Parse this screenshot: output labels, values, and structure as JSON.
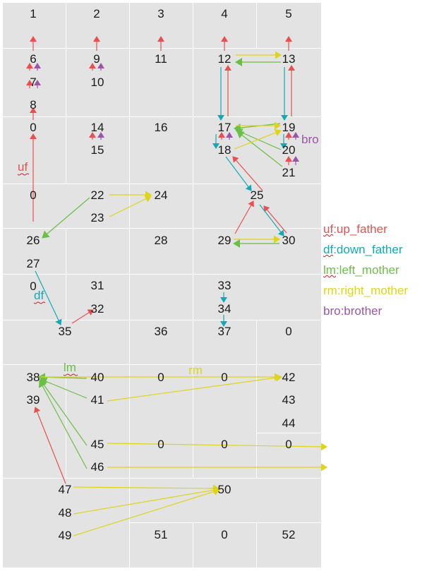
{
  "colors": {
    "up_father": "#e8504f",
    "down_father": "#12aab5",
    "left_mother": "#6abf45",
    "right_mother": "#ddd51a",
    "brother": "#9a55a6",
    "cell_bg": "#e3e3e3",
    "grid": "#ffffff"
  },
  "nodes": {
    "n1": "1",
    "n2": "2",
    "n3": "3",
    "n4": "4",
    "n5": "5",
    "n6": "6",
    "n7": "7",
    "n8": "8",
    "n9": "9",
    "n10": "10",
    "n11": "11",
    "n12": "12",
    "n13": "13",
    "n0a": "0",
    "n14": "14",
    "n15": "15",
    "n16": "16",
    "n17": "17",
    "n18": "18",
    "n19": "19",
    "n20": "20",
    "n21": "21",
    "n0b": "0",
    "n22": "22",
    "n23": "23",
    "n24": "24",
    "n25": "25",
    "n26": "26",
    "n28": "28",
    "n29": "29",
    "n30": "30",
    "n27": "27",
    "n0c": "0",
    "n31": "31",
    "n32": "32",
    "n33": "33",
    "n34": "34",
    "n35": "35",
    "n36": "36",
    "n37": "37",
    "n0d": "0",
    "n38": "38",
    "n40": "40",
    "n0e": "0",
    "n0f": "0",
    "n42": "42",
    "n39": "39",
    "n41": "41",
    "n43": "43",
    "n44": "44",
    "n45": "45",
    "n0g": "0",
    "n0h": "0",
    "n0i": "0",
    "n46": "46",
    "n47": "47",
    "n50": "50",
    "n48": "48",
    "n49": "49",
    "n51": "51",
    "n0j": "0",
    "n52": "52"
  },
  "labels": {
    "uf": "uf",
    "df": "df",
    "lm": "lm",
    "rm": "rm",
    "bro": "bro"
  },
  "legend": [
    {
      "abbr": "uf",
      "text": ":up_father",
      "color_key": "up_father"
    },
    {
      "abbr": "df",
      "text": ":down_father",
      "color_key": "down_father"
    },
    {
      "abbr": "lm",
      "text": ":left_mother",
      "color_key": "left_mother"
    },
    {
      "abbr": "rm",
      "text": ":right_mother",
      "color_key": "right_mother"
    },
    {
      "abbr": "bro",
      "text": ":brother",
      "color_key": "brother"
    }
  ]
}
